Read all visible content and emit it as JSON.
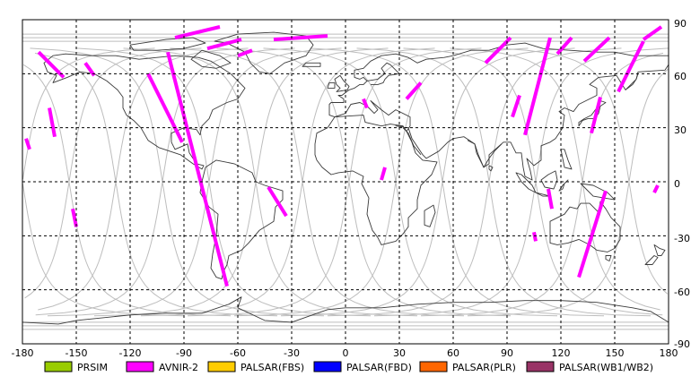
{
  "map": {
    "lon_ticks": [
      "-180",
      "-150",
      "-120",
      "-90",
      "-60",
      "-30",
      "0",
      "30",
      "60",
      "90",
      "120",
      "150",
      "180"
    ],
    "lat_ticks": [
      "90",
      "60",
      "30",
      "0",
      "-30",
      "-60",
      "-90"
    ],
    "lon_range": [
      -180,
      180
    ],
    "lat_range": [
      -90,
      90
    ],
    "grid": "dashed every 30 degrees",
    "colors": {
      "background": "#ffffff",
      "coastline": "#333333",
      "orbit": "#b8b8b8",
      "grid": "#000000"
    }
  },
  "legend": [
    {
      "label": "PRSIM",
      "color": "#99cc00"
    },
    {
      "label": "AVNIR-2",
      "color": "#ff00ff"
    },
    {
      "label": "PALSAR(FBS)",
      "color": "#ffcc00"
    },
    {
      "label": "PALSAR(FBD)",
      "color": "#0000ff"
    },
    {
      "label": "PALSAR(PLR)",
      "color": "#ff6600"
    },
    {
      "label": "PALSAR(WB1/WB2)",
      "color": "#993366"
    }
  ],
  "avnir2_swaths": [
    [
      [
        -171,
        72
      ],
      [
        -157,
        58
      ]
    ],
    [
      [
        -145,
        66
      ],
      [
        -140,
        59
      ]
    ],
    [
      [
        -165,
        41
      ],
      [
        -162,
        25
      ]
    ],
    [
      [
        -178,
        24
      ],
      [
        -176,
        18
      ]
    ],
    [
      [
        -152,
        -15
      ],
      [
        -150,
        -25
      ]
    ],
    [
      [
        -110,
        60
      ],
      [
        -91,
        22
      ]
    ],
    [
      [
        -99,
        72
      ],
      [
        -66,
        -58
      ]
    ],
    [
      [
        -43,
        -3
      ],
      [
        -33,
        -19
      ]
    ],
    [
      [
        -40,
        79
      ],
      [
        -10,
        81
      ]
    ],
    [
      [
        -95,
        80
      ],
      [
        -70,
        86
      ]
    ],
    [
      [
        -77,
        74
      ],
      [
        -58,
        79
      ]
    ],
    [
      [
        -60,
        70
      ],
      [
        -52,
        73
      ]
    ],
    [
      [
        10,
        46
      ],
      [
        12,
        41
      ]
    ],
    [
      [
        42,
        55
      ],
      [
        34,
        46
      ]
    ],
    [
      [
        22,
        8
      ],
      [
        20,
        1
      ]
    ],
    [
      [
        78,
        66
      ],
      [
        92,
        80
      ]
    ],
    [
      [
        93,
        36
      ],
      [
        97,
        48
      ]
    ],
    [
      [
        100,
        26
      ],
      [
        114,
        80
      ]
    ],
    [
      [
        113,
        -4
      ],
      [
        115,
        -15
      ]
    ],
    [
      [
        118,
        71
      ],
      [
        126,
        80
      ]
    ],
    [
      [
        133,
        67
      ],
      [
        147,
        80
      ]
    ],
    [
      [
        137,
        27
      ],
      [
        142,
        47
      ]
    ],
    [
      [
        152,
        50
      ],
      [
        166,
        78
      ]
    ],
    [
      [
        166,
        79
      ],
      [
        176,
        86
      ]
    ],
    [
      [
        130,
        -53
      ],
      [
        145,
        -5
      ]
    ],
    [
      [
        105,
        -28
      ],
      [
        106,
        -33
      ]
    ],
    [
      [
        172,
        -6
      ],
      [
        174,
        -2
      ]
    ]
  ]
}
